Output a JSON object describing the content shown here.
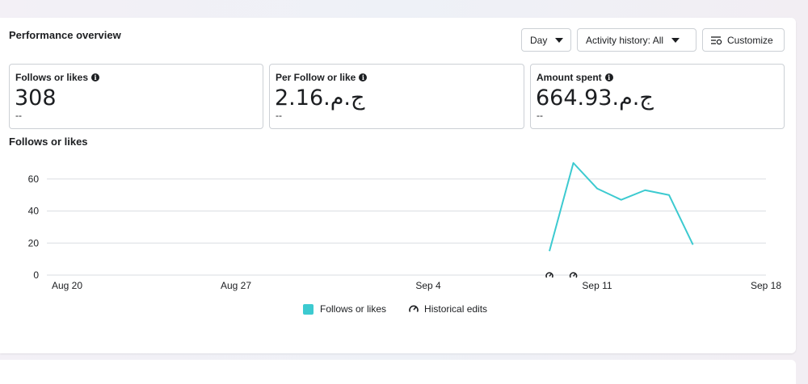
{
  "header": {
    "title": "Performance overview",
    "day_label": "Day",
    "activity_label": "Activity history: All",
    "customize_label": "Customize"
  },
  "metrics": [
    {
      "label": "Follows or likes",
      "value": "308",
      "delta": "--"
    },
    {
      "label": "Per Follow or like",
      "value": "2.16.ج.م",
      "delta": "--"
    },
    {
      "label": "Amount spent",
      "value": "664.93.ج.م",
      "delta": "--"
    }
  ],
  "icons": {
    "info": "info-icon",
    "caret": "caret-down-icon",
    "customize": "sliders-icon",
    "historical": "historical-edit-icon"
  },
  "colors": {
    "series": "#3ccad0",
    "grid": "#dadde1",
    "border": "#ccd0d5"
  },
  "chart_data": {
    "type": "line",
    "title": "Follows or likes",
    "x_labels": [
      "Aug 20",
      "Aug 27",
      "Sep 4",
      "Sep 11",
      "Sep 18"
    ],
    "y_ticks": [
      0,
      20,
      40,
      60
    ],
    "ylim": [
      0,
      70
    ],
    "series": [
      {
        "name": "Follows or likes",
        "x": [
          "Sep 9",
          "Sep 10",
          "Sep 11",
          "Sep 12",
          "Sep 13",
          "Sep 14",
          "Sep 15"
        ],
        "values": [
          15,
          70,
          54,
          47,
          53,
          50,
          19
        ]
      }
    ],
    "historical_edits": [
      "Sep 9",
      "Sep 10"
    ],
    "legend": [
      "Follows or likes",
      "Historical edits"
    ],
    "legend_position": "bottom-center",
    "grid": true
  }
}
